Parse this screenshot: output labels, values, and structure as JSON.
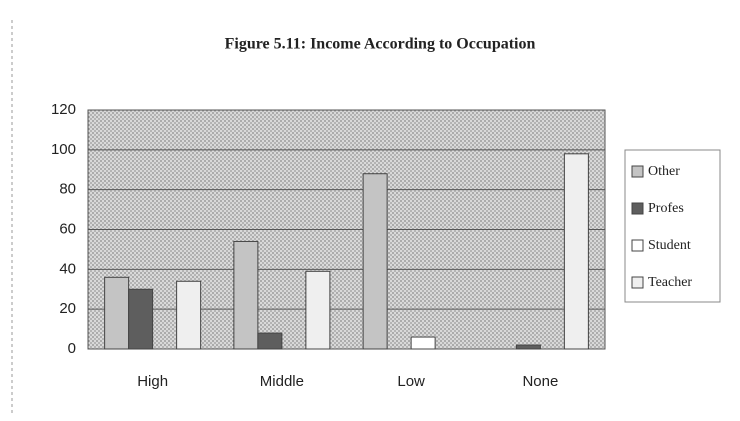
{
  "chart_data": {
    "type": "bar",
    "title": "Figure 5.11: Income According to Occupation",
    "categories": [
      "High",
      "Middle",
      "Low",
      "None"
    ],
    "series": [
      {
        "name": "Other",
        "color": "#c4c4c4",
        "values": [
          36,
          54,
          88,
          0
        ]
      },
      {
        "name": "Profes",
        "color": "#5e5e5e",
        "values": [
          30,
          8,
          0,
          2
        ]
      },
      {
        "name": "Student",
        "color": "#ffffff",
        "values": [
          0,
          0,
          6,
          0
        ]
      },
      {
        "name": "Teacher",
        "color": "#efefef",
        "values": [
          34,
          39,
          0,
          98
        ]
      }
    ],
    "ylim": [
      0,
      120
    ],
    "yticks": [
      0,
      20,
      40,
      60,
      80,
      100,
      120
    ],
    "grid": true
  }
}
